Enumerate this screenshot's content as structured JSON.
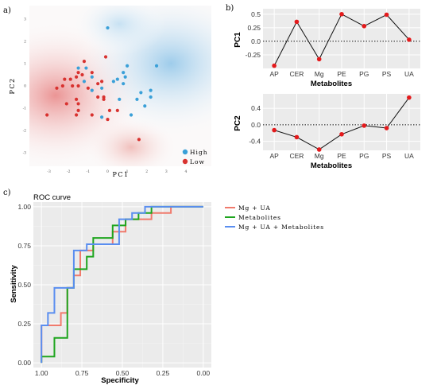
{
  "panel_labels": {
    "a": "a)",
    "b": "b)",
    "c": "c)"
  },
  "chart_data": [
    {
      "type": "scatter",
      "panel": "a",
      "xlabel": "PC1",
      "ylabel": "PC2",
      "x_ticks": [
        "-3",
        "-2",
        "-1",
        "0",
        "1",
        "2",
        "3",
        "4"
      ],
      "y_ticks": [
        "3",
        "2",
        "1",
        "0",
        "-1",
        "-2",
        "-3"
      ],
      "xlim": [
        -4,
        5.3
      ],
      "ylim": [
        -3.6,
        3.6
      ],
      "legend_position": "bottom-right",
      "series": [
        {
          "name": "High",
          "color": "#3aa0d8",
          "points": [
            [
              0,
              2.6
            ],
            [
              -1.5,
              0.8
            ],
            [
              -1.1,
              0.8
            ],
            [
              1,
              0.9
            ],
            [
              2.5,
              0.9
            ],
            [
              0.8,
              0.6
            ],
            [
              0.9,
              0.4
            ],
            [
              -0.8,
              0.4
            ],
            [
              -1.2,
              0.2
            ],
            [
              0.5,
              0.3
            ],
            [
              0.8,
              0.1
            ],
            [
              0.3,
              0.2
            ],
            [
              -0.3,
              -0.1
            ],
            [
              -0.8,
              -0.2
            ],
            [
              2.2,
              -0.2
            ],
            [
              1.7,
              -0.3
            ],
            [
              2.2,
              -0.5
            ],
            [
              1.5,
              -0.6
            ],
            [
              0.6,
              -0.6
            ],
            [
              1.9,
              -0.9
            ],
            [
              1.2,
              -1.3
            ],
            [
              -0.3,
              -1.4
            ]
          ]
        },
        {
          "name": "Low",
          "color": "#d8322f",
          "points": [
            [
              -1.2,
              1.1
            ],
            [
              -0.1,
              1.3
            ],
            [
              -1.5,
              0.6
            ],
            [
              -2.2,
              0.3
            ],
            [
              -1.9,
              0.3
            ],
            [
              -1.6,
              0.4
            ],
            [
              -1.3,
              0.5
            ],
            [
              -0.8,
              0.6
            ],
            [
              -2.3,
              0
            ],
            [
              -1.8,
              0
            ],
            [
              -1.5,
              0
            ],
            [
              -0.5,
              0.1
            ],
            [
              -0.3,
              0.2
            ],
            [
              -2.6,
              -0.1
            ],
            [
              -1,
              -0.1
            ],
            [
              -0.5,
              -0.5
            ],
            [
              -0.2,
              -0.5
            ],
            [
              -1.6,
              -0.6
            ],
            [
              -0.2,
              -0.6
            ],
            [
              -2.1,
              -0.8
            ],
            [
              -1.5,
              -0.8
            ],
            [
              -1.5,
              -1.1
            ],
            [
              0.1,
              -1.1
            ],
            [
              0.5,
              -1.1
            ],
            [
              -3.1,
              -1.3
            ],
            [
              -1.6,
              -1.3
            ],
            [
              -0.8,
              -1.3
            ],
            [
              0,
              -1.5
            ],
            [
              1.6,
              -2.4
            ]
          ]
        }
      ]
    },
    {
      "type": "line",
      "panel": "b",
      "categories": [
        "AP",
        "CER",
        "Mg",
        "PE",
        "PG",
        "PS",
        "UA"
      ],
      "xlabel": "Metabolites",
      "ylabel": "PC1",
      "ylim": [
        -0.5,
        0.6
      ],
      "y_ticks": [
        0.5,
        0.25,
        0,
        -0.25
      ],
      "reference_line": 0,
      "values": [
        -0.45,
        0.36,
        -0.33,
        0.5,
        0.28,
        0.49,
        0.03
      ]
    },
    {
      "type": "line",
      "panel": "b",
      "categories": [
        "AP",
        "CER",
        "Mg",
        "PE",
        "PG",
        "PS",
        "UA"
      ],
      "xlabel": "Metabolites",
      "ylabel": "PC2",
      "ylim": [
        -0.62,
        0.75
      ],
      "y_ticks": [
        0.4,
        0,
        -0.4
      ],
      "reference_line": 0,
      "values": [
        -0.13,
        -0.3,
        -0.6,
        -0.23,
        -0.02,
        -0.08,
        0.66
      ]
    },
    {
      "type": "line",
      "panel": "c",
      "title": "ROC curve",
      "xlabel": "Specificity",
      "ylabel": "Sensitivity",
      "xlim": [
        1.05,
        -0.05
      ],
      "ylim": [
        -0.03,
        1.03
      ],
      "x_ticks": [
        "1.00",
        "0.75",
        "0.50",
        "0.25",
        "0.00"
      ],
      "y_ticks": [
        "0.00",
        "0.25",
        "0.50",
        "0.75",
        "1.00"
      ],
      "legend_position": "right",
      "series": [
        {
          "name": "Mg + UA",
          "color": "#f07a6c",
          "points": [
            [
              1,
              0
            ],
            [
              1,
              0.24
            ],
            [
              0.88,
              0.24
            ],
            [
              0.88,
              0.32
            ],
            [
              0.84,
              0.32
            ],
            [
              0.84,
              0.48
            ],
            [
              0.8,
              0.48
            ],
            [
              0.8,
              0.56
            ],
            [
              0.76,
              0.56
            ],
            [
              0.76,
              0.72
            ],
            [
              0.68,
              0.72
            ],
            [
              0.68,
              0.76
            ],
            [
              0.56,
              0.76
            ],
            [
              0.56,
              0.84
            ],
            [
              0.48,
              0.84
            ],
            [
              0.48,
              0.92
            ],
            [
              0.32,
              0.92
            ],
            [
              0.32,
              0.96
            ],
            [
              0.2,
              0.96
            ],
            [
              0.2,
              1
            ],
            [
              0,
              1
            ]
          ]
        },
        {
          "name": "Metabolites",
          "color": "#1ea51e",
          "points": [
            [
              1,
              0
            ],
            [
              1,
              0.04
            ],
            [
              0.92,
              0.04
            ],
            [
              0.92,
              0.16
            ],
            [
              0.84,
              0.16
            ],
            [
              0.84,
              0.48
            ],
            [
              0.8,
              0.48
            ],
            [
              0.8,
              0.6
            ],
            [
              0.72,
              0.6
            ],
            [
              0.72,
              0.68
            ],
            [
              0.68,
              0.68
            ],
            [
              0.68,
              0.8
            ],
            [
              0.56,
              0.8
            ],
            [
              0.56,
              0.88
            ],
            [
              0.48,
              0.88
            ],
            [
              0.48,
              0.92
            ],
            [
              0.4,
              0.92
            ],
            [
              0.4,
              0.96
            ],
            [
              0.32,
              0.96
            ],
            [
              0.32,
              1
            ],
            [
              0,
              1
            ]
          ]
        },
        {
          "name": "Mg + UA + Metabolites",
          "color": "#5a8ef0",
          "points": [
            [
              1,
              0
            ],
            [
              1,
              0.24
            ],
            [
              0.96,
              0.24
            ],
            [
              0.96,
              0.32
            ],
            [
              0.92,
              0.32
            ],
            [
              0.92,
              0.48
            ],
            [
              0.8,
              0.48
            ],
            [
              0.8,
              0.72
            ],
            [
              0.72,
              0.72
            ],
            [
              0.72,
              0.76
            ],
            [
              0.52,
              0.76
            ],
            [
              0.52,
              0.92
            ],
            [
              0.44,
              0.92
            ],
            [
              0.44,
              0.96
            ],
            [
              0.36,
              0.96
            ],
            [
              0.36,
              1
            ],
            [
              0,
              1
            ]
          ]
        }
      ]
    }
  ]
}
